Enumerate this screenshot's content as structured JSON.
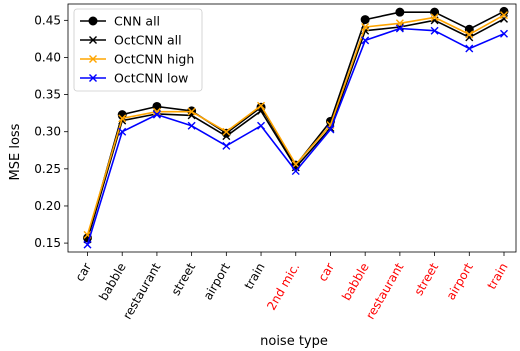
{
  "chart_data": {
    "type": "line",
    "xlabel": "noise type",
    "ylabel": "MSE loss",
    "ylim": [
      0.138,
      0.472
    ],
    "yticks": [
      0.15,
      0.2,
      0.25,
      0.3,
      0.35,
      0.4,
      0.45
    ],
    "ytick_labels": [
      "0.15",
      "0.20",
      "0.25",
      "0.30",
      "0.35",
      "0.40",
      "0.45"
    ],
    "categories": [
      "car",
      "babble",
      "restaurant",
      "street",
      "airport",
      "train",
      "2nd mic.",
      "car",
      "babble",
      "restaurant",
      "street",
      "airport",
      "train"
    ],
    "category_colors": [
      "#000000",
      "#000000",
      "#000000",
      "#000000",
      "#000000",
      "#000000",
      "#ff0000",
      "#ff0000",
      "#ff0000",
      "#ff0000",
      "#ff0000",
      "#ff0000",
      "#ff0000"
    ],
    "legend_position": "top-left",
    "grid": false,
    "series": [
      {
        "name": "CNN all",
        "color": "#000000",
        "marker": "circle",
        "values": [
          0.157,
          0.323,
          0.334,
          0.328,
          0.298,
          0.333,
          0.255,
          0.314,
          0.451,
          0.461,
          0.461,
          0.438,
          0.462
        ]
      },
      {
        "name": "OctCNN all",
        "color": "#000000",
        "marker": "x",
        "values": [
          0.155,
          0.315,
          0.324,
          0.322,
          0.294,
          0.328,
          0.252,
          0.305,
          0.436,
          0.441,
          0.45,
          0.427,
          0.452
        ]
      },
      {
        "name": "OctCNN high",
        "color": "#ffa500",
        "marker": "x",
        "values": [
          0.161,
          0.318,
          0.327,
          0.327,
          0.3,
          0.335,
          0.256,
          0.309,
          0.441,
          0.446,
          0.454,
          0.431,
          0.457
        ]
      },
      {
        "name": "OctCNN low",
        "color": "#0000ff",
        "marker": "x",
        "values": [
          0.148,
          0.3,
          0.323,
          0.308,
          0.281,
          0.308,
          0.247,
          0.303,
          0.423,
          0.439,
          0.436,
          0.412,
          0.432
        ]
      }
    ]
  }
}
